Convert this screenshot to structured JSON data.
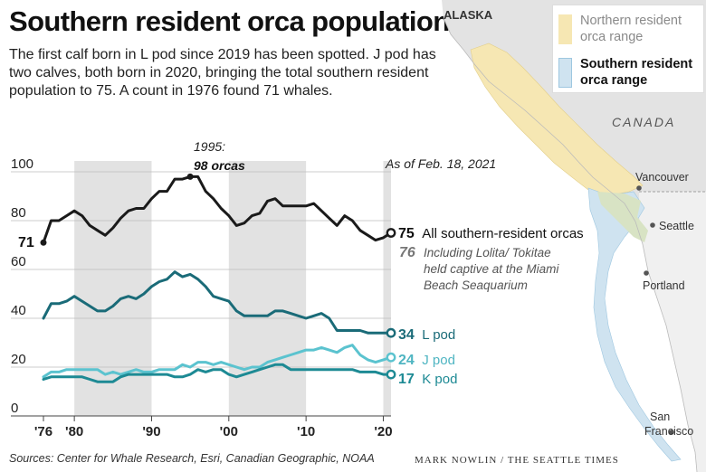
{
  "header": {
    "title": "Southern resident orca population",
    "subtitle": "The first calf born in L pod since 2019 has been spotted.  J pod has two calves, both born in 2020, bringing the total southern resident population to 75. A count in 1976 found 71 whales."
  },
  "annotations": {
    "peak_year": "1995:",
    "peak_value": "98 orcas",
    "as_of": "As of Feb. 18, 2021",
    "start_value": "71",
    "lolita_number": "76",
    "lolita_line1": "Including Lolita/ Tokitae",
    "lolita_line2": "held captive at the Miami",
    "lolita_line3": "Beach Seaquarium"
  },
  "series_labels": {
    "all_num": "75",
    "all_text": "All southern-resident orcas",
    "l_num": "34",
    "l_text": "L pod",
    "j_num": "24",
    "j_text": "J pod",
    "k_num": "17",
    "k_text": "K pod"
  },
  "map": {
    "alaska": "ALASKA",
    "canada": "CANADA",
    "cities": [
      "Vancouver",
      "Seattle",
      "Portland",
      "San Francisco"
    ],
    "legend": [
      {
        "label": "Northern resident orca range",
        "color": "#f6e7b3"
      },
      {
        "label": "Southern resident orca range",
        "color": "#cfe3f0"
      }
    ]
  },
  "footer": {
    "sources": "Sources: Center for Whale Research, Esri, Canadian Geographic, NOAA",
    "credit": "MARK NOWLIN / THE SEATTLE TIMES"
  },
  "colors": {
    "all": "#1a1a1a",
    "l_pod": "#1a6b78",
    "j_pod": "#5bc3cf",
    "k_pod": "#1d8a94",
    "shade": "#e2e2e2"
  },
  "chart_data": {
    "type": "line",
    "title": "Southern resident orca population",
    "xlabel": "",
    "ylabel": "",
    "ylim": [
      0,
      100
    ],
    "xlim": [
      1976,
      2021
    ],
    "x_ticks": [
      "'76",
      "'80",
      "'90",
      "'00",
      "'10",
      "'20"
    ],
    "y_ticks": [
      0,
      20,
      40,
      60,
      80,
      100
    ],
    "shaded_decades": [
      [
        1980,
        1990
      ],
      [
        2000,
        2010
      ],
      [
        2020,
        2021
      ]
    ],
    "x": [
      1976,
      1977,
      1978,
      1979,
      1980,
      1981,
      1982,
      1983,
      1984,
      1985,
      1986,
      1987,
      1988,
      1989,
      1990,
      1991,
      1992,
      1993,
      1994,
      1995,
      1996,
      1997,
      1998,
      1999,
      2000,
      2001,
      2002,
      2003,
      2004,
      2005,
      2006,
      2007,
      2008,
      2009,
      2010,
      2011,
      2012,
      2013,
      2014,
      2015,
      2016,
      2017,
      2018,
      2019,
      2020,
      2021
    ],
    "series": [
      {
        "name": "All southern-resident orcas",
        "values": [
          71,
          80,
          80,
          82,
          84,
          82,
          78,
          76,
          74,
          77,
          81,
          84,
          85,
          85,
          89,
          92,
          92,
          97,
          97,
          98,
          98,
          92,
          89,
          85,
          82,
          78,
          79,
          82,
          83,
          88,
          89,
          86,
          86,
          86,
          86,
          87,
          84,
          81,
          78,
          82,
          80,
          76,
          74,
          72,
          73,
          75
        ]
      },
      {
        "name": "L pod",
        "values": [
          40,
          46,
          46,
          47,
          49,
          47,
          45,
          43,
          43,
          45,
          48,
          49,
          48,
          50,
          53,
          55,
          56,
          59,
          57,
          58,
          56,
          53,
          49,
          48,
          47,
          43,
          41,
          41,
          41,
          41,
          43,
          43,
          42,
          41,
          40,
          41,
          42,
          40,
          35,
          35,
          35,
          35,
          34,
          34,
          34,
          34
        ]
      },
      {
        "name": "J pod",
        "values": [
          16,
          18,
          18,
          19,
          19,
          19,
          19,
          19,
          17,
          18,
          17,
          18,
          19,
          18,
          18,
          19,
          19,
          19,
          21,
          20,
          22,
          22,
          21,
          22,
          21,
          20,
          19,
          20,
          20,
          22,
          23,
          24,
          25,
          26,
          27,
          27,
          28,
          27,
          26,
          28,
          29,
          25,
          23,
          22,
          23,
          24
        ]
      },
      {
        "name": "K pod",
        "values": [
          15,
          16,
          16,
          16,
          16,
          16,
          15,
          14,
          14,
          14,
          16,
          17,
          17,
          17,
          17,
          17,
          17,
          16,
          16,
          17,
          19,
          18,
          19,
          19,
          17,
          16,
          17,
          18,
          19,
          20,
          21,
          21,
          19,
          19,
          19,
          19,
          19,
          19,
          19,
          19,
          19,
          18,
          18,
          18,
          17,
          17
        ]
      }
    ]
  }
}
